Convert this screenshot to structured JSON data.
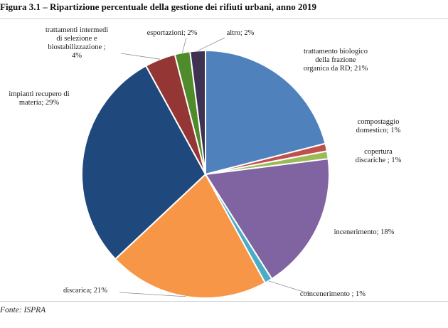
{
  "figure": {
    "title": "Figura 3.1 – Ripartizione percentuale della gestione dei rifiuti urbani, anno 2019",
    "source": "Fonte: ISPRA"
  },
  "chart_data": {
    "type": "pie",
    "title": "",
    "slices": [
      {
        "label": "trattamento biologico della frazione organica da RD",
        "value": 21,
        "color": "#4f81bd"
      },
      {
        "label": "compostaggio domestico",
        "value": 1,
        "color": "#c0504d"
      },
      {
        "label": "copertura discariche",
        "value": 1,
        "color": "#9bbb59"
      },
      {
        "label": "incenerimento",
        "value": 18,
        "color": "#8064a2"
      },
      {
        "label": "coincenerimento",
        "value": 1,
        "color": "#4bacc6"
      },
      {
        "label": "discarica",
        "value": 21,
        "color": "#f79646"
      },
      {
        "label": "impianti recupero di materia",
        "value": 29,
        "color": "#1f497d"
      },
      {
        "label": "trattamenti intermedi di selezione e biostabilizzazione",
        "value": 4,
        "color": "#943634"
      },
      {
        "label": "esportazioni",
        "value": 2,
        "color": "#4f8a2b"
      },
      {
        "label": "altro",
        "value": 2,
        "color": "#3f3151"
      }
    ],
    "labels": [
      {
        "lines": [
          "trattamento biologico",
          "della frazione",
          "organica da RD; 21%"
        ]
      },
      {
        "lines": [
          "compostaggio",
          "domestico; 1%"
        ]
      },
      {
        "lines": [
          "copertura",
          "discariche ; 1%"
        ]
      },
      {
        "lines": [
          "incenerimento; 18%"
        ]
      },
      {
        "lines": [
          "coincenerimento ; 1%"
        ]
      },
      {
        "lines": [
          "discarica; 21%"
        ]
      },
      {
        "lines": [
          "impianti recupero di",
          "materia; 29%"
        ]
      },
      {
        "lines": [
          "trattamenti intermedi",
          "di selezione e",
          "biostabilizzazione ;",
          "4%"
        ]
      },
      {
        "lines": [
          "esportazioni; 2%"
        ]
      },
      {
        "lines": [
          "altro; 2%"
        ]
      }
    ],
    "legend": "none",
    "units": "%"
  }
}
